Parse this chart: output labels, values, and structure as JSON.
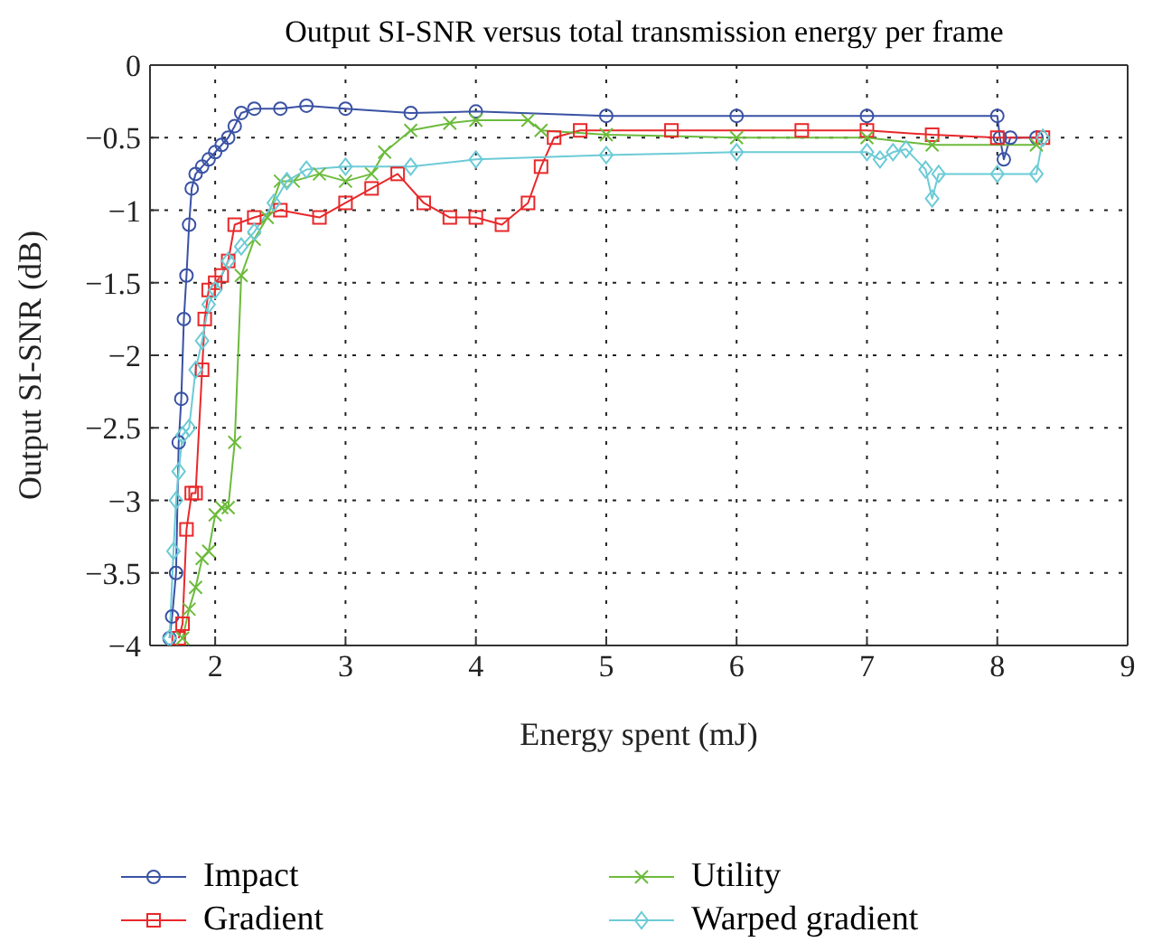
{
  "chart_data": {
    "type": "line",
    "title": "Output SI-SNR versus total transmission energy per frame",
    "xlabel": "Energy spent (mJ)",
    "ylabel": "Output SI-SNR (dB)",
    "xlim": [
      1.5,
      9
    ],
    "xticks": [
      2,
      3,
      4,
      5,
      6,
      7,
      8,
      9
    ],
    "ylim": [
      -4,
      0
    ],
    "yticks": [
      -4,
      -3.5,
      -3,
      -2.5,
      -2,
      -1.5,
      -1,
      -0.5,
      0
    ],
    "grid": true,
    "legend": "bottom",
    "line_style": "solid",
    "series": [
      {
        "name": "Impact",
        "color": "#3a52a4",
        "marker": "circle",
        "x": [
          1.65,
          1.67,
          1.7,
          1.72,
          1.74,
          1.76,
          1.78,
          1.8,
          1.82,
          1.85,
          1.9,
          1.95,
          2.0,
          2.05,
          2.1,
          2.15,
          2.2,
          2.3,
          2.5,
          2.7,
          3.0,
          3.5,
          4.0,
          5,
          6,
          7,
          8,
          8.02,
          8.05,
          8.1,
          8.3
        ],
        "values": [
          -3.95,
          -3.8,
          -3.5,
          -2.6,
          -2.3,
          -1.75,
          -1.45,
          -1.1,
          -0.85,
          -0.75,
          -0.7,
          -0.65,
          -0.6,
          -0.55,
          -0.5,
          -0.42,
          -0.33,
          -0.3,
          -0.3,
          -0.28,
          -0.3,
          -0.33,
          -0.32,
          -0.35,
          -0.35,
          -0.35,
          -0.35,
          -0.5,
          -0.65,
          -0.5,
          -0.5
        ]
      },
      {
        "name": "Gradient",
        "color": "#e8282a",
        "marker": "square",
        "x": [
          1.72,
          1.75,
          1.78,
          1.82,
          1.85,
          1.9,
          1.92,
          1.95,
          2.0,
          2.05,
          2.1,
          2.15,
          2.3,
          2.5,
          2.8,
          3.0,
          3.2,
          3.4,
          3.6,
          3.8,
          4.0,
          4.2,
          4.4,
          4.5,
          4.6,
          4.8,
          5.5,
          6.5,
          7,
          7.5,
          8,
          8.35
        ],
        "values": [
          -3.95,
          -3.85,
          -3.2,
          -2.95,
          -2.95,
          -2.1,
          -1.75,
          -1.55,
          -1.5,
          -1.45,
          -1.35,
          -1.1,
          -1.05,
          -1.0,
          -1.05,
          -0.95,
          -0.85,
          -0.75,
          -0.95,
          -1.05,
          -1.05,
          -1.1,
          -0.95,
          -0.7,
          -0.5,
          -0.45,
          -0.45,
          -0.45,
          -0.45,
          -0.48,
          -0.5,
          -0.5
        ]
      },
      {
        "name": "Utility",
        "color": "#6cbb3c",
        "marker": "cross",
        "x": [
          1.75,
          1.8,
          1.85,
          1.9,
          1.95,
          2.0,
          2.05,
          2.1,
          2.15,
          2.2,
          2.3,
          2.4,
          2.5,
          2.6,
          2.8,
          3.0,
          3.2,
          3.3,
          3.5,
          3.8,
          4.0,
          4.4,
          4.5,
          5,
          6,
          7,
          7.5,
          8.3
        ],
        "values": [
          -3.95,
          -3.75,
          -3.6,
          -3.4,
          -3.35,
          -3.1,
          -3.05,
          -3.05,
          -2.6,
          -1.45,
          -1.2,
          -1.05,
          -0.8,
          -0.8,
          -0.75,
          -0.8,
          -0.75,
          -0.6,
          -0.45,
          -0.4,
          -0.38,
          -0.38,
          -0.45,
          -0.48,
          -0.5,
          -0.5,
          -0.55,
          -0.55
        ]
      },
      {
        "name": "Warped gradient",
        "color": "#6ccbd6",
        "marker": "diamond",
        "x": [
          1.65,
          1.68,
          1.7,
          1.72,
          1.75,
          1.8,
          1.85,
          1.9,
          1.95,
          2.0,
          2.1,
          2.2,
          2.3,
          2.45,
          2.55,
          2.7,
          3.0,
          3.5,
          4.0,
          5,
          6,
          7,
          7.1,
          7.2,
          7.3,
          7.45,
          7.5,
          7.55,
          8,
          8.3,
          8.35
        ],
        "values": [
          -3.95,
          -3.35,
          -3.0,
          -2.8,
          -2.55,
          -2.5,
          -2.1,
          -1.9,
          -1.65,
          -1.55,
          -1.35,
          -1.25,
          -1.15,
          -0.95,
          -0.8,
          -0.72,
          -0.7,
          -0.7,
          -0.65,
          -0.62,
          -0.6,
          -0.6,
          -0.65,
          -0.6,
          -0.58,
          -0.72,
          -0.92,
          -0.75,
          -0.75,
          -0.75,
          -0.5
        ]
      }
    ]
  }
}
